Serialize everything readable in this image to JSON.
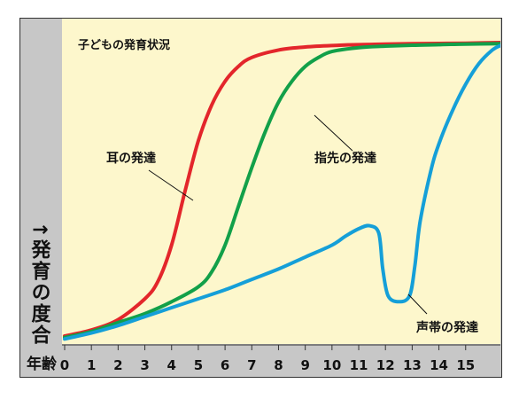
{
  "chart_data": {
    "type": "line",
    "title": "子どもの発育状況",
    "ylabel": "↑発育の度合",
    "xlabel": "年齢",
    "x_ticks": [
      0,
      1,
      2,
      3,
      4,
      5,
      6,
      7,
      8,
      9,
      10,
      11,
      12,
      13,
      14,
      15
    ],
    "xlim": [
      0,
      16.3
    ],
    "ylim": [
      0,
      100
    ],
    "grid": false,
    "series": [
      {
        "name": "耳の発達",
        "color": "#e3262b",
        "x": [
          0,
          1,
          2,
          3,
          3.5,
          4,
          4.5,
          5,
          5.5,
          6,
          6.5,
          7,
          8,
          9,
          10,
          11,
          12,
          13,
          14,
          15,
          16.3
        ],
        "y": [
          1.5,
          3.5,
          7,
          14,
          20,
          32,
          50,
          67,
          79,
          87,
          92,
          95,
          97.5,
          98.5,
          99,
          99.3,
          99.5,
          99.6,
          99.7,
          99.8,
          100
        ]
      },
      {
        "name": "指先の発達",
        "color": "#12a049",
        "x": [
          0,
          1,
          2,
          3,
          4,
          5,
          5.5,
          6,
          6.5,
          7,
          7.5,
          8,
          8.5,
          9,
          9.5,
          10,
          11,
          12,
          13,
          14,
          15,
          16.3
        ],
        "y": [
          1,
          3,
          6,
          9,
          13,
          18,
          23,
          32,
          45,
          58,
          70,
          80,
          87,
          92,
          95,
          97,
          98.3,
          98.8,
          99.1,
          99.3,
          99.5,
          99.6
        ]
      },
      {
        "name": "声帯の発達",
        "color": "#159fd8",
        "x": [
          0,
          1,
          2,
          3,
          4,
          5,
          6,
          7,
          8,
          9,
          10,
          10.5,
          11,
          11.4,
          11.75,
          11.9,
          12.1,
          12.5,
          12.9,
          13.1,
          13.3,
          13.7,
          14,
          14.5,
          15,
          15.5,
          16,
          16.3
        ],
        "y": [
          0.5,
          2.5,
          5,
          8,
          11,
          14,
          17,
          20.5,
          24,
          28,
          32,
          35,
          37.5,
          38.5,
          36,
          24,
          15,
          13,
          15,
          25,
          40,
          57,
          66,
          77,
          86,
          93,
          97.5,
          99
        ]
      }
    ],
    "annotations": [
      {
        "text": "耳の発達"
      },
      {
        "text": "指先の発達"
      },
      {
        "text": "声帯の発達"
      }
    ]
  }
}
